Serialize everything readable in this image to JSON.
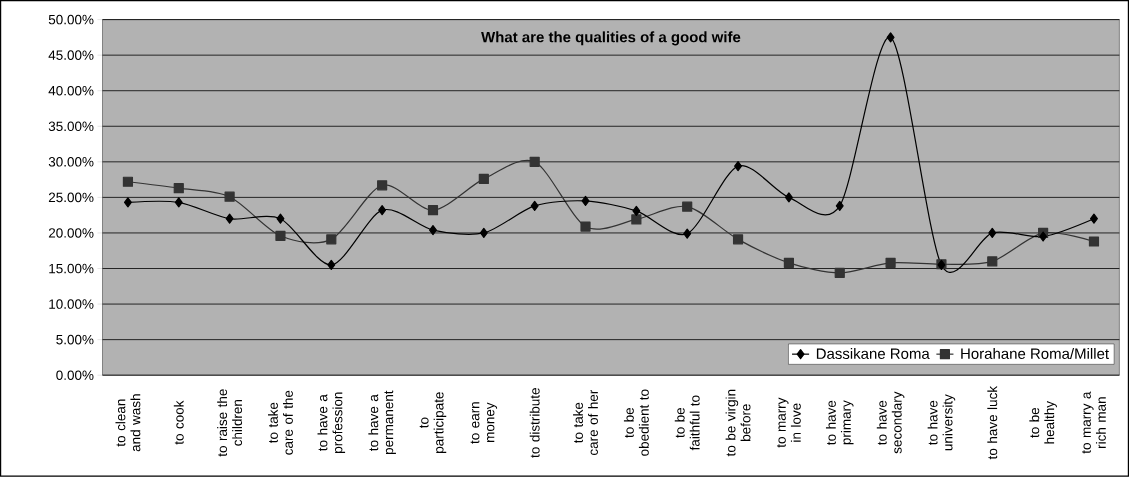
{
  "chart_data": {
    "type": "line",
    "title": "What are the qualities of a good wife",
    "categories": [
      "to clean and wash",
      "to cook",
      "to raise the children",
      "to take care of the",
      "to have a profession",
      "to have a permanent",
      "to participate",
      "to earn money",
      "to distribute",
      "to take care of her",
      "to be obedient to",
      "to be faithful to",
      "to be virgin before",
      "to marry in love",
      "to have primary",
      "to have secondary",
      "to have university",
      "to have luck",
      "to be healthy",
      "to marry a rich man"
    ],
    "series": [
      {
        "name": "Dassikane Roma",
        "color": "#000000",
        "marker": "diamond",
        "values": [
          24.3,
          24.3,
          22.0,
          22.0,
          15.5,
          23.2,
          20.4,
          20.0,
          23.8,
          24.5,
          23.1,
          19.9,
          29.4,
          25.0,
          23.8,
          47.5,
          15.5,
          20.0,
          19.5,
          22.0
        ]
      },
      {
        "name": "Horahane Roma/Millet",
        "color": "#333333",
        "marker": "square",
        "values": [
          27.2,
          26.3,
          25.1,
          19.6,
          19.1,
          26.7,
          23.2,
          27.6,
          30.0,
          20.9,
          21.9,
          23.7,
          19.1,
          15.8,
          14.4,
          15.8,
          15.6,
          16.0,
          20.0,
          18.8
        ]
      }
    ],
    "ylim": [
      0,
      50
    ],
    "yticks": [
      {
        "value": 0,
        "label": "0.00%"
      },
      {
        "value": 5,
        "label": "5.00%"
      },
      {
        "value": 10,
        "label": "10.00%"
      },
      {
        "value": 15,
        "label": "15.00%"
      },
      {
        "value": 20,
        "label": "20.00%"
      },
      {
        "value": 25,
        "label": "25.00%"
      },
      {
        "value": 30,
        "label": "30.00%"
      },
      {
        "value": 35,
        "label": "35.00%"
      },
      {
        "value": 40,
        "label": "40.00%"
      },
      {
        "value": 45,
        "label": "45.00%"
      },
      {
        "value": 50,
        "label": "50.00%"
      }
    ],
    "grid": "y",
    "legend": "bottom right",
    "line_style": "solid"
  }
}
